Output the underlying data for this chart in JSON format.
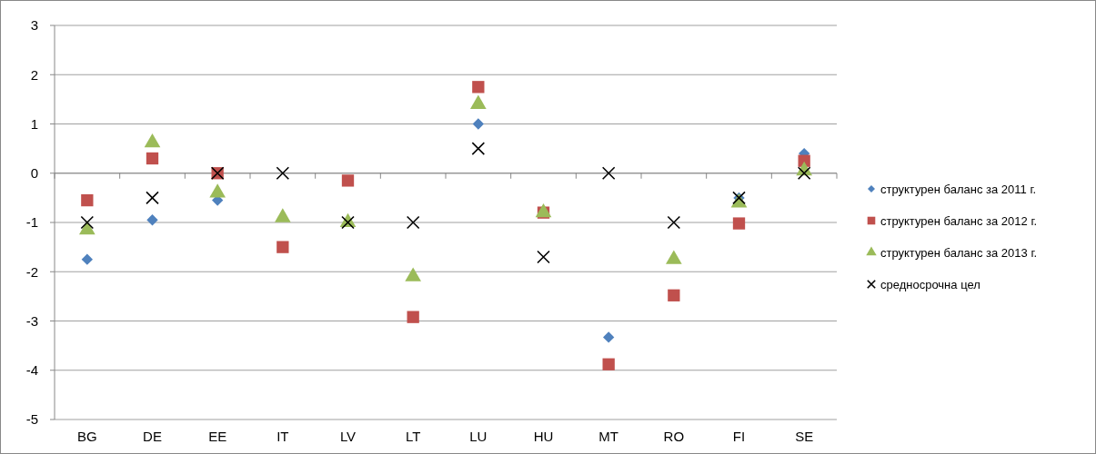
{
  "chart_data": {
    "type": "scatter",
    "categories": [
      "BG",
      "DE",
      "EE",
      "IT",
      "LV",
      "LT",
      "LU",
      "HU",
      "MT",
      "RO",
      "FI",
      "SE"
    ],
    "series": [
      {
        "name": "структурен баланс за 2011 г.",
        "color": "#4f81bd",
        "marker": "diamond",
        "values": [
          -1.75,
          -0.95,
          -0.55,
          null,
          null,
          null,
          1.0,
          null,
          -3.33,
          null,
          -0.5,
          0.4
        ]
      },
      {
        "name": "структурен баланс за 2012 г.",
        "color": "#c0504d",
        "marker": "square",
        "values": [
          -0.55,
          0.3,
          0.0,
          -1.5,
          -0.15,
          -2.92,
          1.75,
          -0.8,
          -3.88,
          -2.48,
          -1.02,
          0.25
        ]
      },
      {
        "name": "структурен баланс за 2013 г.",
        "color": "#9bbb59",
        "marker": "triangle",
        "values": [
          -1.15,
          0.62,
          -0.4,
          -0.9,
          -1.0,
          -2.1,
          1.4,
          -0.8,
          null,
          -1.75,
          -0.6,
          0.05
        ]
      },
      {
        "name": "средносрочна цел",
        "color": "#000000",
        "marker": "cross",
        "values": [
          -1,
          -0.5,
          0,
          0,
          -1,
          -1,
          0.5,
          -1.7,
          0,
          -1,
          -0.5,
          0
        ]
      }
    ],
    "ylim": [
      -5,
      3
    ],
    "yticks": [
      -5,
      -4,
      -3,
      -2,
      -1,
      0,
      1,
      2,
      3
    ],
    "grid": "y",
    "legend": "right"
  }
}
